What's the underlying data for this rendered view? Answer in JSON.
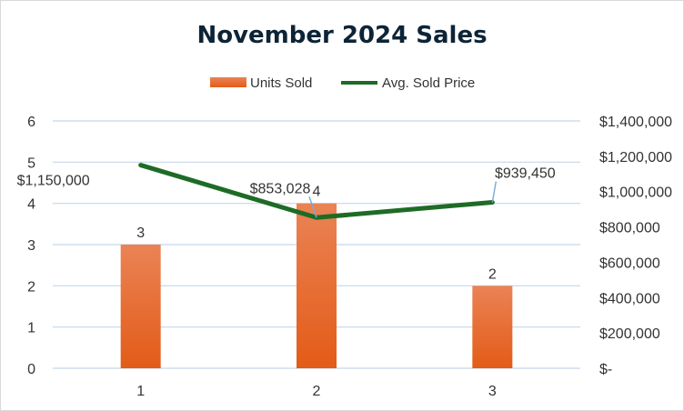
{
  "chart_data": {
    "type": "bar",
    "title": "November 2024 Sales",
    "categories": [
      "1",
      "2",
      "3"
    ],
    "series": [
      {
        "name": "Units Sold",
        "kind": "bar",
        "axis": "left",
        "color": "#e8692a",
        "values": [
          3,
          4,
          2
        ],
        "labels": [
          "3",
          "4",
          "2"
        ]
      },
      {
        "name": "Avg. Sold Price",
        "kind": "line",
        "axis": "right",
        "color": "#1e6b25",
        "values": [
          1150000,
          853028,
          939450
        ],
        "labels": [
          "$1,150,000",
          "$853,028",
          "$939,450"
        ]
      }
    ],
    "ylim": [
      0,
      6
    ],
    "y_ticks": [
      "0",
      "1",
      "2",
      "3",
      "4",
      "5",
      "6"
    ],
    "y2lim": [
      0,
      1400000
    ],
    "y2_ticks": [
      "$-",
      "$200,000",
      "$400,000",
      "$600,000",
      "$800,000",
      "$1,000,000",
      "$1,200,000",
      "$1,400,000"
    ],
    "grid": true,
    "legend_position": "top"
  }
}
